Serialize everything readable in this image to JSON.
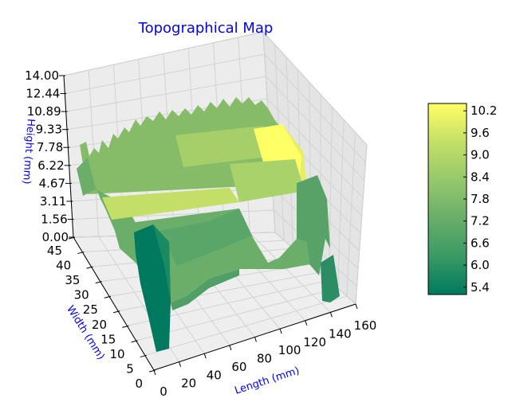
{
  "chart_data": {
    "type": "surface3d",
    "title": "Topographical Map",
    "xlabel": "Length (mm)",
    "ylabel": "Width (mm)",
    "zlabel": "Height (mm)",
    "x_ticks": [
      "0",
      "20",
      "40",
      "60",
      "80",
      "100",
      "120",
      "140",
      "160"
    ],
    "y_ticks": [
      "0",
      "5",
      "10",
      "15",
      "20",
      "25",
      "30",
      "35",
      "40",
      "45"
    ],
    "z_ticks": [
      "0.00",
      "1.56",
      "3.11",
      "4.67",
      "6.22",
      "7.78",
      "9.33",
      "10.89",
      "12.44",
      "14.00"
    ],
    "xlim": [
      0,
      160
    ],
    "ylim": [
      0,
      45
    ],
    "zlim": [
      0,
      14
    ],
    "colorbar": {
      "ticks": [
        "5.4",
        "6.0",
        "6.6",
        "7.2",
        "7.8",
        "8.4",
        "9.0",
        "9.6",
        "10.2"
      ],
      "range": [
        5.2,
        10.4
      ],
      "colormap": [
        "#00795f",
        "#3a9a65",
        "#6aae6a",
        "#96c86c",
        "#c4df67",
        "#ffff66"
      ]
    },
    "surface": {
      "description_regions": [
        {
          "region": "front-left column",
          "height": 5.4
        },
        {
          "region": "front block",
          "height": 7.2
        },
        {
          "region": "middle plateau",
          "height": 8.7
        },
        {
          "region": "back-right ridge",
          "height": 10.2
        },
        {
          "region": "back region",
          "height": 8.0
        }
      ]
    },
    "grid": true,
    "colors": {
      "title": "#0000ff",
      "axis_labels": "#0000ff",
      "pane": "#f0f0f0",
      "grid": "#d8d8d8"
    }
  }
}
